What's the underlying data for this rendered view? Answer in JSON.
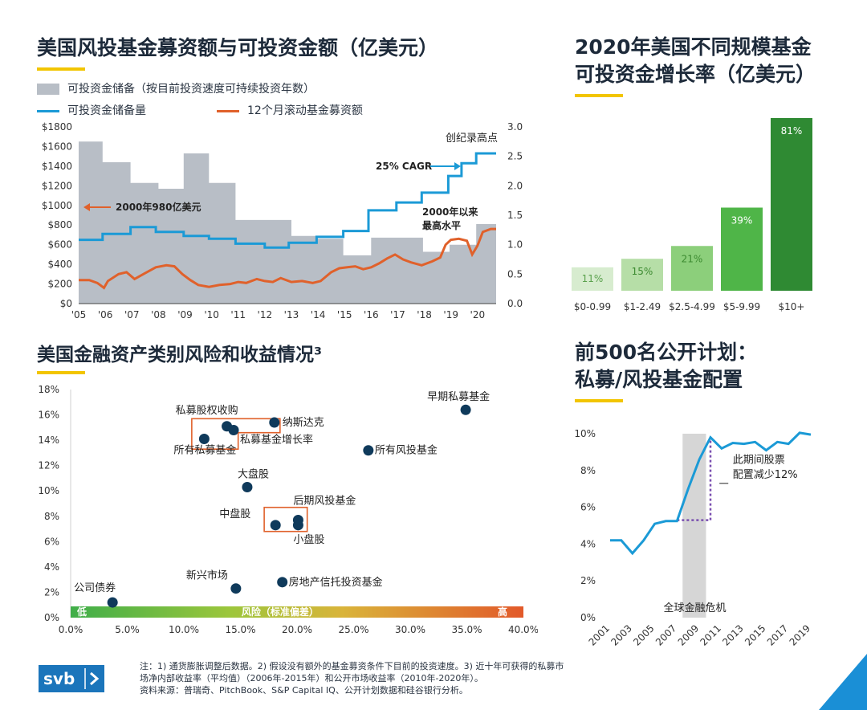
{
  "titles": {
    "main": "美国风投基金募资额与可投资金额（亿美元）",
    "growth": [
      "2020年美国不同规模基金",
      "可投资金增长率（亿美元）"
    ],
    "risk": "美国金融资产类别风险和收益情况³",
    "plans": [
      "前500名公开计划：",
      "私募/风投基金配置"
    ]
  },
  "colors": {
    "accent": "#f2c500",
    "blue": "#1b9ad6",
    "orange": "#e0612b",
    "gray": "#b8bec6",
    "navy": "#0f3a5b"
  },
  "chart_data": [
    {
      "id": "dry-powder",
      "type": "line",
      "legend": [
        "可投资金储备（按目前投资速度可持续投资年数）",
        "可投资金储备量",
        "12个月滚动基金募资额"
      ],
      "x_ticks": [
        "'05",
        "'06",
        "'07",
        "'08",
        "'09",
        "'10",
        "'11",
        "'12",
        "'13",
        "'14",
        "'15",
        "'16",
        "'17",
        "'18",
        "'19",
        "'20"
      ],
      "y_left_ticks": [
        "$0",
        "$200",
        "$400",
        "$600",
        "$800",
        "$1000",
        "$1200",
        "$1400",
        "$1600",
        "$1800"
      ],
      "y_left_range": [
        0,
        1800
      ],
      "y_right_ticks": [
        "0.0",
        "0.5",
        "1.0",
        "1.5",
        "2.0",
        "2.5",
        "3.0"
      ],
      "y_right_range": [
        0,
        3.0
      ],
      "years_area": [
        [
          2005.0,
          2.75
        ],
        [
          2005.9,
          2.75
        ],
        [
          2005.9,
          2.4
        ],
        [
          2006.95,
          2.4
        ],
        [
          2006.95,
          2.05
        ],
        [
          2008.0,
          2.05
        ],
        [
          2008.0,
          1.95
        ],
        [
          2008.95,
          1.95
        ],
        [
          2008.95,
          2.55
        ],
        [
          2009.9,
          2.55
        ],
        [
          2009.9,
          2.05
        ],
        [
          2010.9,
          2.05
        ],
        [
          2010.9,
          1.42
        ],
        [
          2012.0,
          1.42
        ],
        [
          2012.0,
          1.42
        ],
        [
          2013.0,
          1.42
        ],
        [
          2013.0,
          1.15
        ],
        [
          2013.95,
          1.15
        ],
        [
          2013.95,
          1.1
        ],
        [
          2014.95,
          1.1
        ],
        [
          2014.95,
          0.82
        ],
        [
          2016.0,
          0.82
        ],
        [
          2016.0,
          1.12
        ],
        [
          2017.95,
          1.12
        ],
        [
          2017.95,
          0.88
        ],
        [
          2018.95,
          0.88
        ],
        [
          2018.95,
          1.0
        ],
        [
          2019.95,
          1.0
        ],
        [
          2019.95,
          1.35
        ],
        [
          2020.7,
          1.35
        ]
      ],
      "dry_powder": [
        [
          2005.0,
          650
        ],
        [
          2005.9,
          650
        ],
        [
          2005.9,
          710
        ],
        [
          2006.95,
          710
        ],
        [
          2006.95,
          780
        ],
        [
          2007.9,
          780
        ],
        [
          2007.9,
          730
        ],
        [
          2008.95,
          730
        ],
        [
          2008.95,
          690
        ],
        [
          2009.9,
          690
        ],
        [
          2009.9,
          660
        ],
        [
          2010.9,
          660
        ],
        [
          2010.9,
          610
        ],
        [
          2012.0,
          610
        ],
        [
          2012.0,
          570
        ],
        [
          2012.9,
          570
        ],
        [
          2012.9,
          620
        ],
        [
          2013.95,
          620
        ],
        [
          2013.95,
          680
        ],
        [
          2014.95,
          680
        ],
        [
          2014.95,
          740
        ],
        [
          2015.9,
          740
        ],
        [
          2015.9,
          950
        ],
        [
          2016.95,
          950
        ],
        [
          2016.95,
          1030
        ],
        [
          2017.9,
          1030
        ],
        [
          2017.9,
          1130
        ],
        [
          2018.9,
          1130
        ],
        [
          2018.9,
          1300
        ],
        [
          2019.4,
          1300
        ],
        [
          2019.4,
          1430
        ],
        [
          2019.95,
          1430
        ],
        [
          2019.95,
          1530
        ],
        [
          2020.7,
          1530
        ]
      ],
      "fundraising": [
        [
          2005.0,
          240
        ],
        [
          2005.4,
          240
        ],
        [
          2005.7,
          210
        ],
        [
          2005.95,
          160
        ],
        [
          2006.1,
          230
        ],
        [
          2006.5,
          300
        ],
        [
          2006.8,
          320
        ],
        [
          2007.1,
          250
        ],
        [
          2007.5,
          310
        ],
        [
          2007.9,
          370
        ],
        [
          2008.3,
          390
        ],
        [
          2008.6,
          380
        ],
        [
          2008.9,
          300
        ],
        [
          2009.2,
          240
        ],
        [
          2009.5,
          190
        ],
        [
          2009.9,
          170
        ],
        [
          2010.3,
          190
        ],
        [
          2010.7,
          200
        ],
        [
          2011.0,
          220
        ],
        [
          2011.3,
          210
        ],
        [
          2011.7,
          250
        ],
        [
          2012.0,
          230
        ],
        [
          2012.3,
          220
        ],
        [
          2012.6,
          260
        ],
        [
          2013.0,
          220
        ],
        [
          2013.4,
          230
        ],
        [
          2013.8,
          210
        ],
        [
          2014.1,
          230
        ],
        [
          2014.5,
          320
        ],
        [
          2014.8,
          360
        ],
        [
          2015.1,
          370
        ],
        [
          2015.4,
          380
        ],
        [
          2015.7,
          350
        ],
        [
          2016.0,
          370
        ],
        [
          2016.3,
          410
        ],
        [
          2016.6,
          460
        ],
        [
          2016.9,
          500
        ],
        [
          2017.2,
          450
        ],
        [
          2017.5,
          420
        ],
        [
          2017.9,
          390
        ],
        [
          2018.3,
          430
        ],
        [
          2018.6,
          470
        ],
        [
          2018.8,
          600
        ],
        [
          2019.0,
          650
        ],
        [
          2019.3,
          660
        ],
        [
          2019.6,
          640
        ],
        [
          2019.8,
          500
        ],
        [
          2020.0,
          590
        ],
        [
          2020.2,
          730
        ],
        [
          2020.5,
          760
        ],
        [
          2020.7,
          760
        ]
      ],
      "annotations": [
        "创纪录高点",
        "25% CAGR",
        "2000年980亿美元",
        "2000年以来",
        "最高水平"
      ]
    },
    {
      "id": "growth-by-size",
      "type": "bar",
      "categories": [
        "$0-0.99",
        "$1-2.49",
        "$2.5-4.99",
        "$5-9.99",
        "$10+"
      ],
      "values": [
        11,
        15,
        21,
        39,
        81
      ],
      "labels": [
        "11%",
        "15%",
        "21%",
        "39%",
        "81%"
      ],
      "colors": [
        "#d7eccf",
        "#b6dea7",
        "#8ccf7b",
        "#4fb548",
        "#2f8a33"
      ]
    },
    {
      "id": "risk-return",
      "type": "scatter",
      "x_ticks": [
        "0.0%",
        "5.0%",
        "10.0%",
        "15.0%",
        "20.0%",
        "25.0%",
        "30.0%",
        "35.0%",
        "40.0%"
      ],
      "x_range": [
        0,
        40
      ],
      "y_ticks": [
        "0%",
        "2%",
        "4%",
        "6%",
        "8%",
        "10%",
        "12%",
        "14%",
        "16%",
        "18%"
      ],
      "y_range": [
        0,
        18
      ],
      "x_axis_label": "风险（标准偏差）",
      "low_label": "低",
      "high_label": "高",
      "points": [
        {
          "name": "公司债券",
          "x": 3.7,
          "y": 1.2
        },
        {
          "name": "新兴市场",
          "x": 14.6,
          "y": 2.3
        },
        {
          "name": "房地产信托投资基金",
          "x": 18.7,
          "y": 2.8
        },
        {
          "name": "中盘股",
          "x": 18.1,
          "y": 7.3
        },
        {
          "name": "小盘股",
          "x": 20.1,
          "y": 7.3
        },
        {
          "name": "后期风投基金",
          "x": 20.1,
          "y": 7.7
        },
        {
          "name": "大盘股",
          "x": 15.6,
          "y": 10.3
        },
        {
          "name": "所有私募基金",
          "x": 11.8,
          "y": 14.1
        },
        {
          "name": "私募股权收购",
          "x": 13.8,
          "y": 15.1
        },
        {
          "name": "私募基金增长率",
          "x": 14.4,
          "y": 14.8
        },
        {
          "name": "纳斯达克",
          "x": 18.0,
          "y": 15.4
        },
        {
          "name": "所有风投基金",
          "x": 26.3,
          "y": 13.2
        },
        {
          "name": "早期私募基金",
          "x": 34.9,
          "y": 16.4
        }
      ]
    },
    {
      "id": "allocation",
      "type": "line",
      "x_ticks": [
        "2001",
        "2003",
        "2005",
        "2007",
        "2009",
        "2011",
        "2013",
        "2015",
        "2017",
        "2019"
      ],
      "y_ticks": [
        "0%",
        "2%",
        "4%",
        "6%",
        "8%",
        "10%"
      ],
      "y_range": [
        0,
        10
      ],
      "values": [
        [
          2001,
          4.2
        ],
        [
          2002,
          4.2
        ],
        [
          2003,
          3.5
        ],
        [
          2004,
          4.2
        ],
        [
          2005,
          5.1
        ],
        [
          2006,
          5.25
        ],
        [
          2007,
          5.25
        ],
        [
          2008,
          7.0
        ],
        [
          2009,
          8.6
        ],
        [
          2010,
          9.8
        ],
        [
          2011,
          9.2
        ],
        [
          2012,
          9.5
        ],
        [
          2013,
          9.45
        ],
        [
          2014,
          9.55
        ],
        [
          2015,
          9.1
        ],
        [
          2016,
          9.55
        ],
        [
          2017,
          9.45
        ],
        [
          2018,
          10.05
        ],
        [
          2019,
          9.95
        ]
      ],
      "shade_label": "全球金融危机",
      "annotation": [
        "此期间股票",
        "配置减少12%"
      ]
    }
  ],
  "footer": {
    "notes": [
      "注：1) 通货膨胀调整后数据。2) 假设没有额外的基金募资条件下目前的投资速度。3) 近十年可获得的私募市",
      "场净内部收益率（平均值）（2006年-2015年）和公开市场收益率（2010年-2020年）。",
      "资料来源：普瑞奇、PitchBook、S&P Capital IQ、公开计划数据和硅谷银行分析。"
    ],
    "logo": "svb"
  }
}
